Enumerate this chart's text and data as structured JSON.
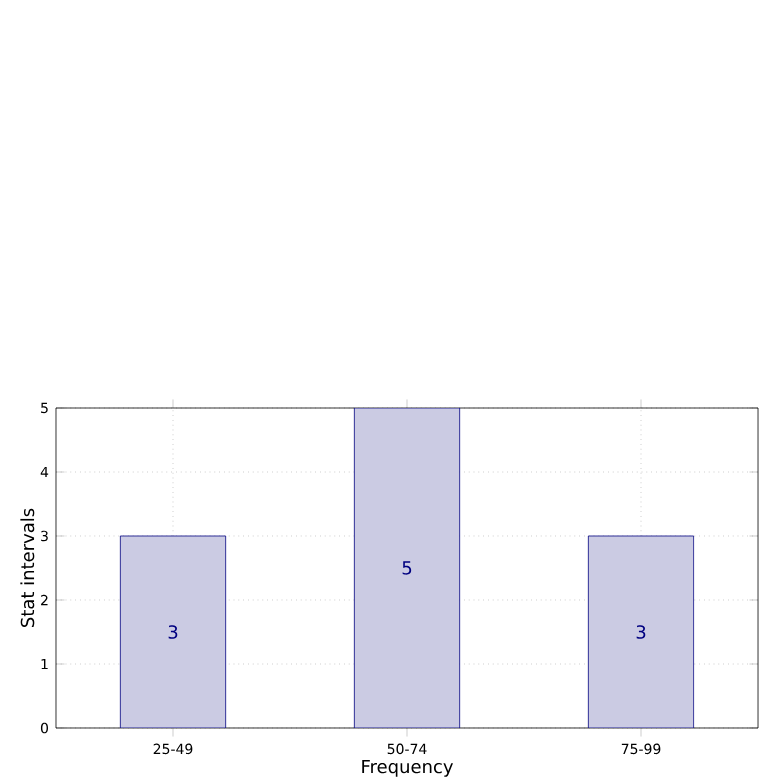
{
  "chart_data": {
    "type": "bar",
    "xlabel": "Frequency",
    "ylabel": "Stat intervals",
    "categories": [
      "25-49",
      "50-74",
      "75-99"
    ],
    "values": [
      3,
      5,
      3
    ],
    "color": "#cbcbe3",
    "ylim": [
      0,
      5
    ],
    "yticks": [
      0,
      1,
      2,
      3,
      4,
      5
    ],
    "grid": true,
    "line_style": "dotted",
    "data_labels": true
  }
}
